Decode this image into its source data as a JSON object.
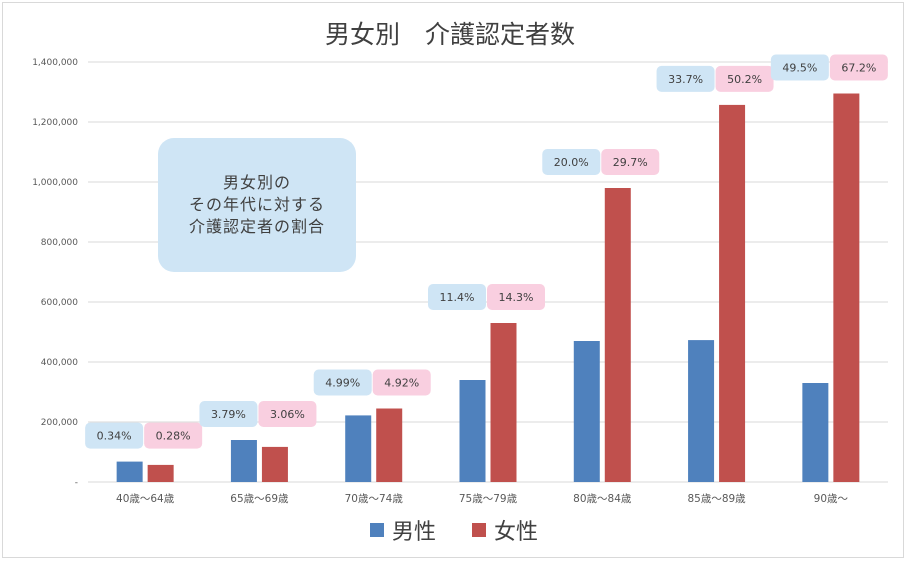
{
  "chart_data": {
    "type": "bar",
    "title": "男女別　介護認定者数",
    "categories": [
      "40歳～64歳",
      "65歳～69歳",
      "70歳～74歳",
      "75歳～79歳",
      "80歳～84歳",
      "85歳～89歳",
      "90歳～"
    ],
    "series": [
      {
        "name": "男性",
        "color": "#4f81bd",
        "values": [
          68000,
          140000,
          222000,
          340000,
          470000,
          473000,
          330000
        ],
        "percent_labels": [
          "0.34%",
          "3.79%",
          "4.99%",
          "11.4%",
          "20.0%",
          "33.7%",
          "49.5%"
        ]
      },
      {
        "name": "女性",
        "color": "#c0504d",
        "values": [
          57000,
          117000,
          245000,
          530000,
          980000,
          1257000,
          1295000
        ],
        "percent_labels": [
          "0.28%",
          "3.06%",
          "4.92%",
          "14.3%",
          "29.7%",
          "50.2%",
          "67.2%"
        ]
      }
    ],
    "y_ticks": [
      "-",
      "200,000",
      "400,000",
      "600,000",
      "800,000",
      "1,000,000",
      "1,200,000",
      "1,400,000"
    ],
    "ylim": [
      0,
      1400000
    ],
    "grid": true,
    "legend": "bottom",
    "label_colors": {
      "male": "#cfe5f5",
      "female": "#f9cfe0"
    },
    "annotation": [
      "男女別の",
      "その年代に対する",
      "介護認定者の割合"
    ]
  }
}
